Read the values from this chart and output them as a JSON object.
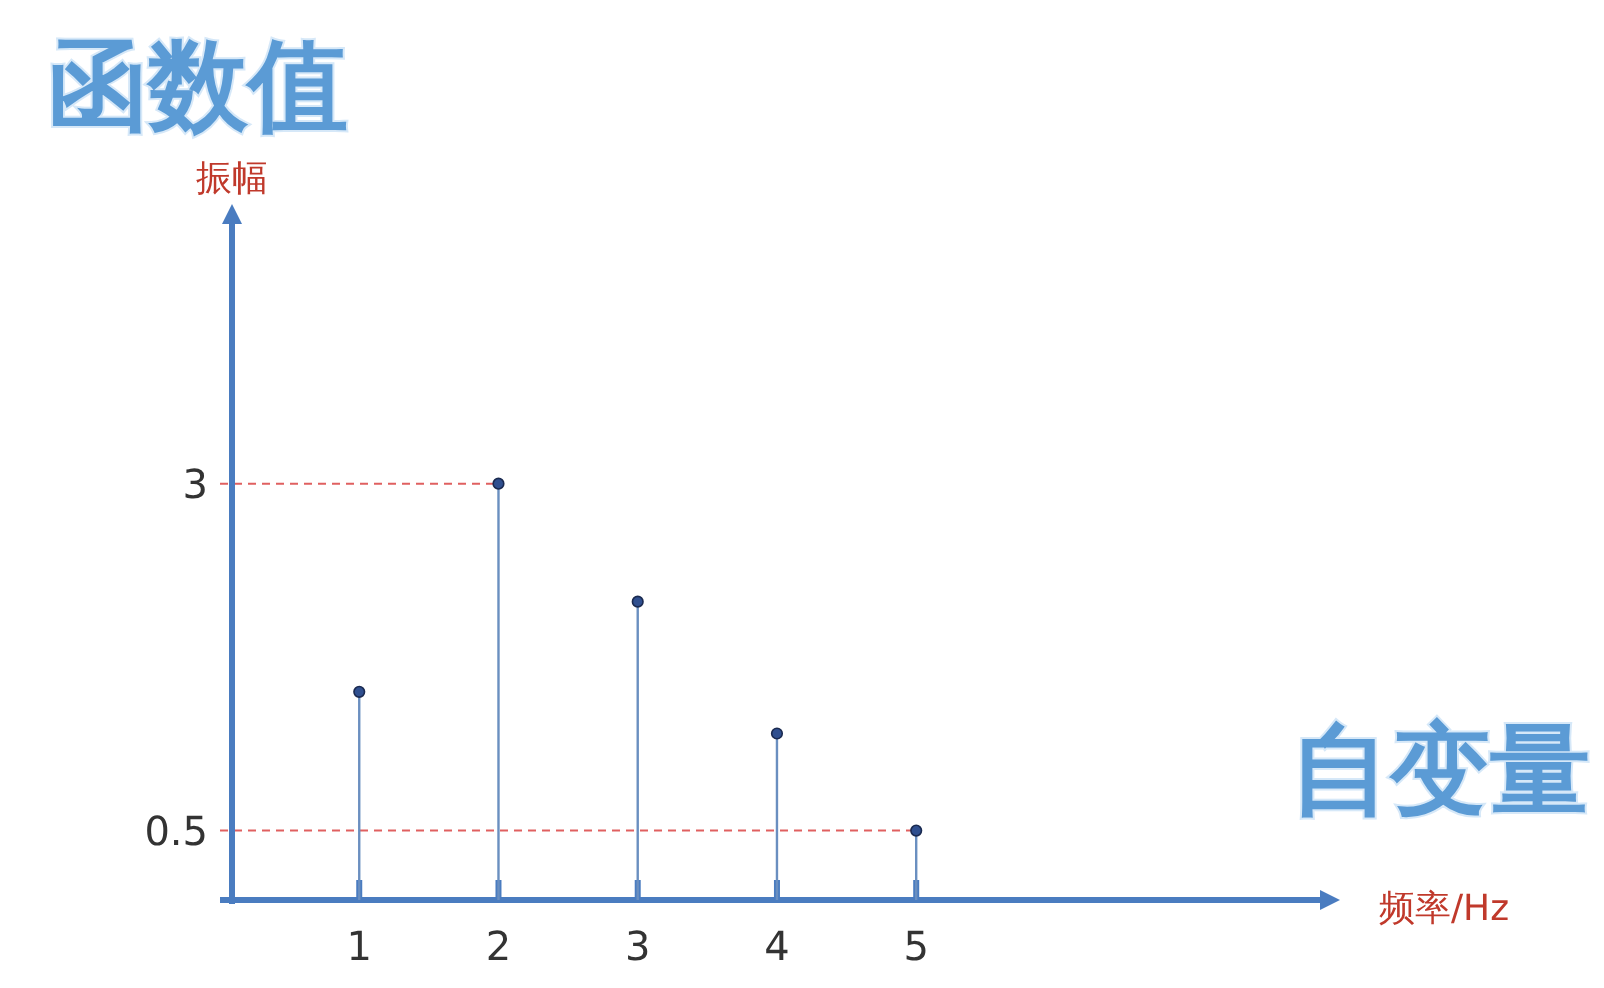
{
  "chart_data": {
    "type": "lollipop",
    "title": "函数值",
    "xlabel": "频率/Hz",
    "ylabel": "振幅",
    "annotations": [
      "自变量"
    ],
    "x": [
      1,
      2,
      3,
      4,
      5
    ],
    "series": [
      {
        "color": "#2f4f8f",
        "values": [
          1.5,
          3,
          2.15,
          1.2,
          0.5
        ]
      }
    ],
    "xlim": [
      0,
      7.9
    ],
    "xticks": [
      1,
      2,
      3,
      4,
      5
    ],
    "ylim": [
      0,
      4.9
    ],
    "yticks": [
      0.5,
      3
    ],
    "ref_lines": [
      {
        "axis": "y",
        "value": 3,
        "color": "#e06060",
        "line_style": "dashed"
      },
      {
        "axis": "y",
        "value": 0.5,
        "color": "#e06060",
        "line_style": "dashed"
      }
    ],
    "marker": "circle",
    "grid": false
  }
}
